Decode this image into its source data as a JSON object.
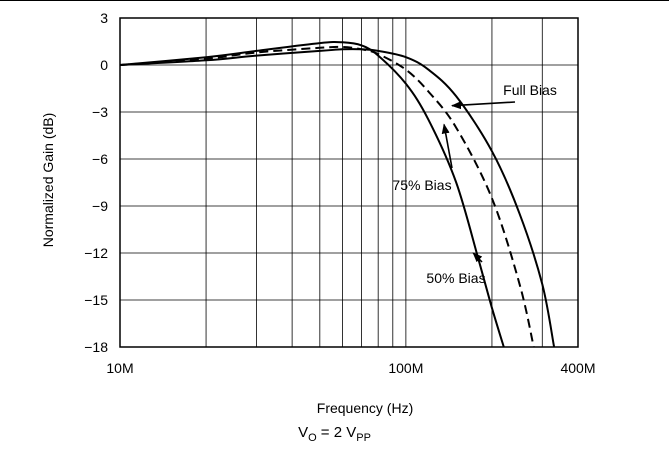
{
  "chart_data": {
    "type": "line",
    "title": "",
    "xlabel": "Frequency (Hz)",
    "ylabel": "Normalized Gain (dB)",
    "x_scale": "log",
    "xlim": [
      10000000,
      400000000
    ],
    "ylim": [
      -18,
      3
    ],
    "grid": true,
    "x_ticks": [
      {
        "value": 10000000,
        "label": "10M"
      },
      {
        "value": 100000000,
        "label": "100M"
      },
      {
        "value": 400000000,
        "label": "400M"
      }
    ],
    "y_ticks": [
      {
        "value": 3,
        "label": "3"
      },
      {
        "value": 0,
        "label": "0"
      },
      {
        "value": -3,
        "label": "−3"
      },
      {
        "value": -6,
        "label": "−6"
      },
      {
        "value": -9,
        "label": "−9"
      },
      {
        "value": -12,
        "label": "−12"
      },
      {
        "value": -15,
        "label": "−15"
      },
      {
        "value": -18,
        "label": "−18"
      }
    ],
    "series": [
      {
        "name": "Full Bias",
        "style": "solid",
        "x": [
          10000000,
          20000000,
          30000000,
          50000000,
          60000000,
          70000000,
          80000000,
          100000000,
          120000000,
          150000000,
          200000000,
          250000000,
          300000000,
          330000000
        ],
        "y": [
          0,
          0.3,
          0.6,
          0.9,
          1.0,
          1.0,
          0.9,
          0.5,
          -0.3,
          -2.0,
          -5.5,
          -9.5,
          -14.0,
          -18.0
        ]
      },
      {
        "name": "75% Bias",
        "style": "dashed",
        "x": [
          10000000,
          20000000,
          30000000,
          50000000,
          60000000,
          70000000,
          80000000,
          100000000,
          120000000,
          150000000,
          200000000,
          250000000,
          280000000
        ],
        "y": [
          0,
          0.4,
          0.8,
          1.1,
          1.15,
          1.0,
          0.7,
          -0.3,
          -1.7,
          -4.0,
          -8.5,
          -14.0,
          -18.0
        ]
      },
      {
        "name": "50% Bias",
        "style": "solid",
        "x": [
          10000000,
          20000000,
          30000000,
          50000000,
          60000000,
          70000000,
          80000000,
          100000000,
          120000000,
          150000000,
          180000000,
          200000000,
          220000000
        ],
        "y": [
          0,
          0.5,
          0.9,
          1.4,
          1.45,
          1.25,
          0.6,
          -1.2,
          -3.5,
          -7.5,
          -12.5,
          -15.5,
          -18.0
        ]
      }
    ],
    "annotations": [
      {
        "text": "Full Bias",
        "series": "Full Bias"
      },
      {
        "text": "75% Bias",
        "series": "75% Bias"
      },
      {
        "text": "50% Bias",
        "series": "50% Bias"
      }
    ]
  },
  "footnote": {
    "prefix": "V",
    "prefix_sub": "O",
    "middle": " = 2 V",
    "suffix_sub": "PP"
  },
  "colors": {
    "line": "#000000",
    "grid": "#000000",
    "background": "#ffffff"
  }
}
